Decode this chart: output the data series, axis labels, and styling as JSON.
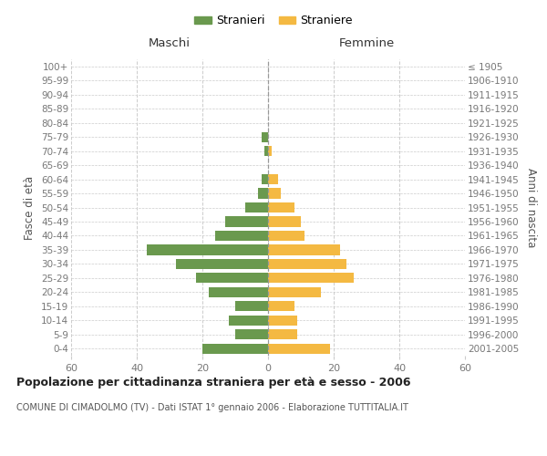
{
  "age_groups": [
    "0-4",
    "5-9",
    "10-14",
    "15-19",
    "20-24",
    "25-29",
    "30-34",
    "35-39",
    "40-44",
    "45-49",
    "50-54",
    "55-59",
    "60-64",
    "65-69",
    "70-74",
    "75-79",
    "80-84",
    "85-89",
    "90-94",
    "95-99",
    "100+"
  ],
  "birth_years": [
    "2001-2005",
    "1996-2000",
    "1991-1995",
    "1986-1990",
    "1981-1985",
    "1976-1980",
    "1971-1975",
    "1966-1970",
    "1961-1965",
    "1956-1960",
    "1951-1955",
    "1946-1950",
    "1941-1945",
    "1936-1940",
    "1931-1935",
    "1926-1930",
    "1921-1925",
    "1916-1920",
    "1911-1915",
    "1906-1910",
    "≤ 1905"
  ],
  "maschi": [
    20,
    10,
    12,
    10,
    18,
    22,
    28,
    37,
    16,
    13,
    7,
    3,
    2,
    0,
    1,
    2,
    0,
    0,
    0,
    0,
    0
  ],
  "femmine": [
    19,
    9,
    9,
    8,
    16,
    26,
    24,
    22,
    11,
    10,
    8,
    4,
    3,
    0,
    1,
    0,
    0,
    0,
    0,
    0,
    0
  ],
  "color_maschi": "#6a994e",
  "color_femmine": "#f4b942",
  "title": "Popolazione per cittadinanza straniera per età e sesso - 2006",
  "subtitle": "COMUNE DI CIMADOLMO (TV) - Dati ISTAT 1° gennaio 2006 - Elaborazione TUTTITALIA.IT",
  "xlabel_left": "Maschi",
  "xlabel_right": "Femmine",
  "ylabel_left": "Fasce di età",
  "ylabel_right": "Anni di nascita",
  "legend_maschi": "Stranieri",
  "legend_femmine": "Straniere",
  "xlim": 60,
  "background_color": "#ffffff",
  "grid_color": "#cccccc",
  "axis_label_color": "#555555",
  "tick_color": "#777777"
}
